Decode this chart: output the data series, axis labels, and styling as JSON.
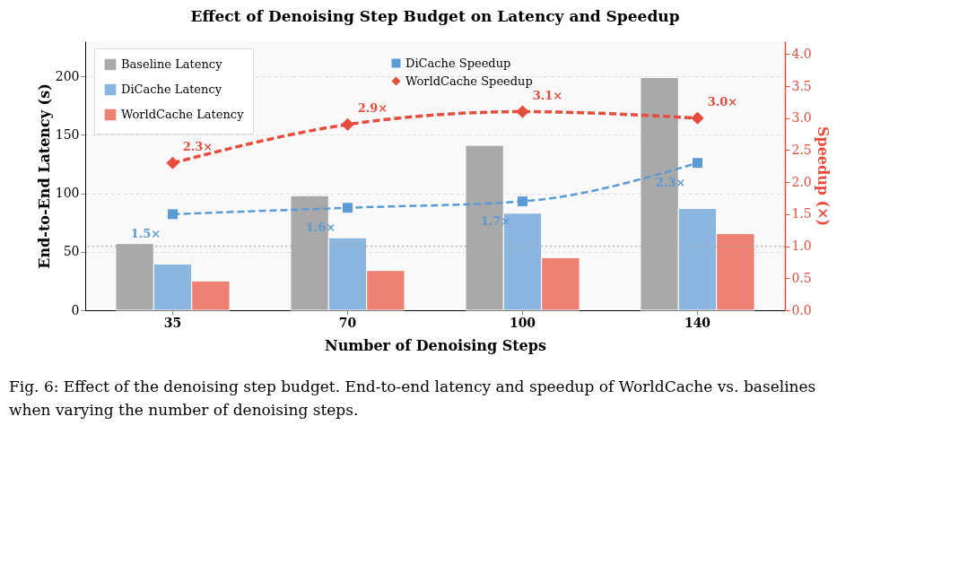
{
  "chart_data": {
    "type": "bar",
    "title": "Effect of Denoising Step Budget on Latency and Speedup",
    "xlabel": "Number of Denoising Steps",
    "ylabel": "End-to-End Latency (s)",
    "y2label": "Speedup (×)",
    "categories": [
      "35",
      "70",
      "100",
      "140"
    ],
    "series": [
      {
        "name": "Baseline Latency",
        "color": "#a9a9a9",
        "values": [
          57,
          98,
          141,
          199
        ]
      },
      {
        "name": "DiCache Latency",
        "color": "#8ab6e0",
        "values": [
          39.5,
          62,
          83,
          87
        ]
      },
      {
        "name": "WorldCache Latency",
        "color": "#ec8174",
        "values": [
          25,
          34,
          45,
          65.5
        ]
      },
      {
        "name": "DiCache Speedup",
        "type": "line",
        "axis": "y2",
        "color": "#5b9bd5",
        "marker": "square",
        "line_style": "dashed",
        "values": [
          1.5,
          1.6,
          1.7,
          2.3
        ],
        "value_labels": [
          "1.5×",
          "1.6×",
          "1.7×",
          "2.3×"
        ]
      },
      {
        "name": "WorldCache Speedup",
        "type": "line",
        "axis": "y2",
        "color": "#e74c3c",
        "marker": "diamond",
        "line_style": "dashed",
        "values": [
          2.3,
          2.9,
          3.1,
          3.0
        ],
        "value_labels": [
          "2.3×",
          "2.9×",
          "3.1×",
          "3.0×"
        ]
      }
    ],
    "ylim": [
      0,
      230
    ],
    "yticks": [
      0,
      50,
      100,
      150,
      200
    ],
    "y2lim": [
      0,
      4.2
    ],
    "y2ticks": [
      {
        "value": 0,
        "label": "0.0"
      },
      0.5,
      {
        "value": 1,
        "label": "1.0"
      },
      1.5,
      {
        "value": 2,
        "label": "2.0"
      },
      2.5,
      {
        "value": 3,
        "label": "3.0"
      },
      3.5,
      {
        "value": 4,
        "label": "4.0"
      }
    ],
    "ref_lines": [
      {
        "axis": "y2",
        "value": 1.0,
        "color": "#aaaaaa",
        "line_style": "dotted"
      }
    ],
    "grid": "y",
    "legend": "top left",
    "annotations": [
      "Fig. 6: Effect of the denoising step budget. End-to-end latency and speedup of WorldCache vs. baselines when varying the number of denoising steps."
    ]
  }
}
